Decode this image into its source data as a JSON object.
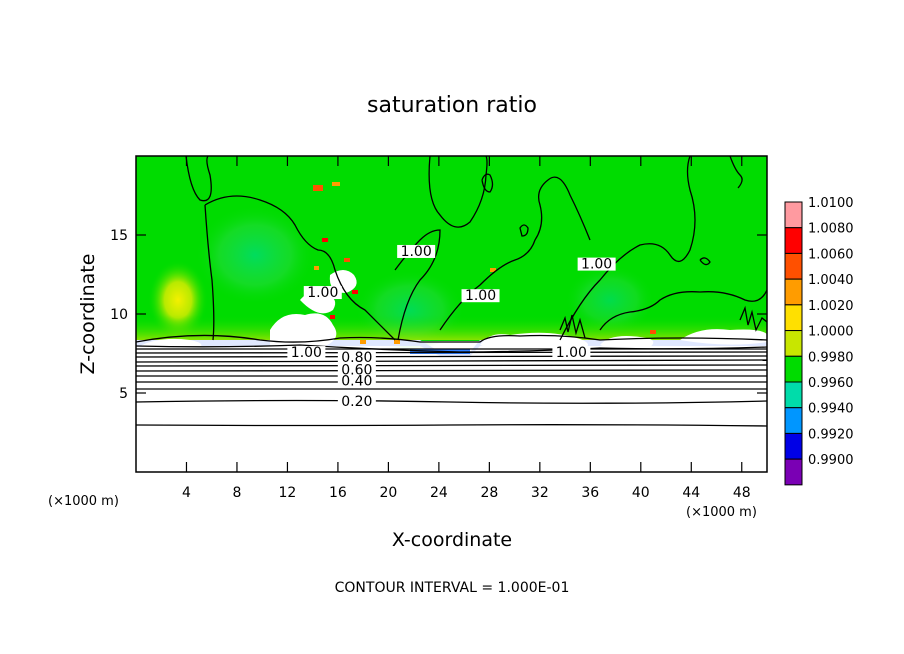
{
  "chart_data": {
    "type": "heatmap",
    "title": "saturation ratio",
    "xlabel": "X-coordinate",
    "ylabel": "Z-coordinate",
    "x_unit_left": "(×1000 m)",
    "x_unit_right": "(×1000 m)",
    "footer": "CONTOUR INTERVAL = 1.000E-01",
    "xlim": [
      0,
      50
    ],
    "ylim": [
      0,
      20
    ],
    "x_ticks": [
      4,
      8,
      12,
      16,
      20,
      24,
      28,
      32,
      36,
      40,
      44,
      48
    ],
    "y_ticks": [
      5,
      10,
      15
    ],
    "colorbar": {
      "levels": [
        "1.0100",
        "1.0080",
        "1.0060",
        "1.0040",
        "1.0020",
        "1.0000",
        "0.9980",
        "0.9960",
        "0.9940",
        "0.9920",
        "0.9900"
      ],
      "colors": [
        "#ff9aa0",
        "#ff0000",
        "#ff5000",
        "#ff9c00",
        "#ffe000",
        "#c8e600",
        "#00dc00",
        "#00dcaa",
        "#0096ff",
        "#0000e6",
        "#7a00b4"
      ]
    },
    "contour_labels": [
      {
        "text": "1.00",
        "x": 14.8,
        "z": 11.2
      },
      {
        "text": "1.00",
        "x": 22.2,
        "z": 13.8
      },
      {
        "text": "1.00",
        "x": 27.3,
        "z": 11.0
      },
      {
        "text": "1.00",
        "x": 36.5,
        "z": 13.0
      },
      {
        "text": "1.00",
        "x": 13.5,
        "z": 7.4
      },
      {
        "text": "1.00",
        "x": 34.5,
        "z": 7.4
      },
      {
        "text": "0.80",
        "x": 17.5,
        "z": 7.1
      },
      {
        "text": "0.60",
        "x": 17.5,
        "z": 6.3
      },
      {
        "text": "0.40",
        "x": 17.5,
        "z": 5.6
      },
      {
        "text": "0.20",
        "x": 17.5,
        "z": 4.3
      }
    ]
  }
}
